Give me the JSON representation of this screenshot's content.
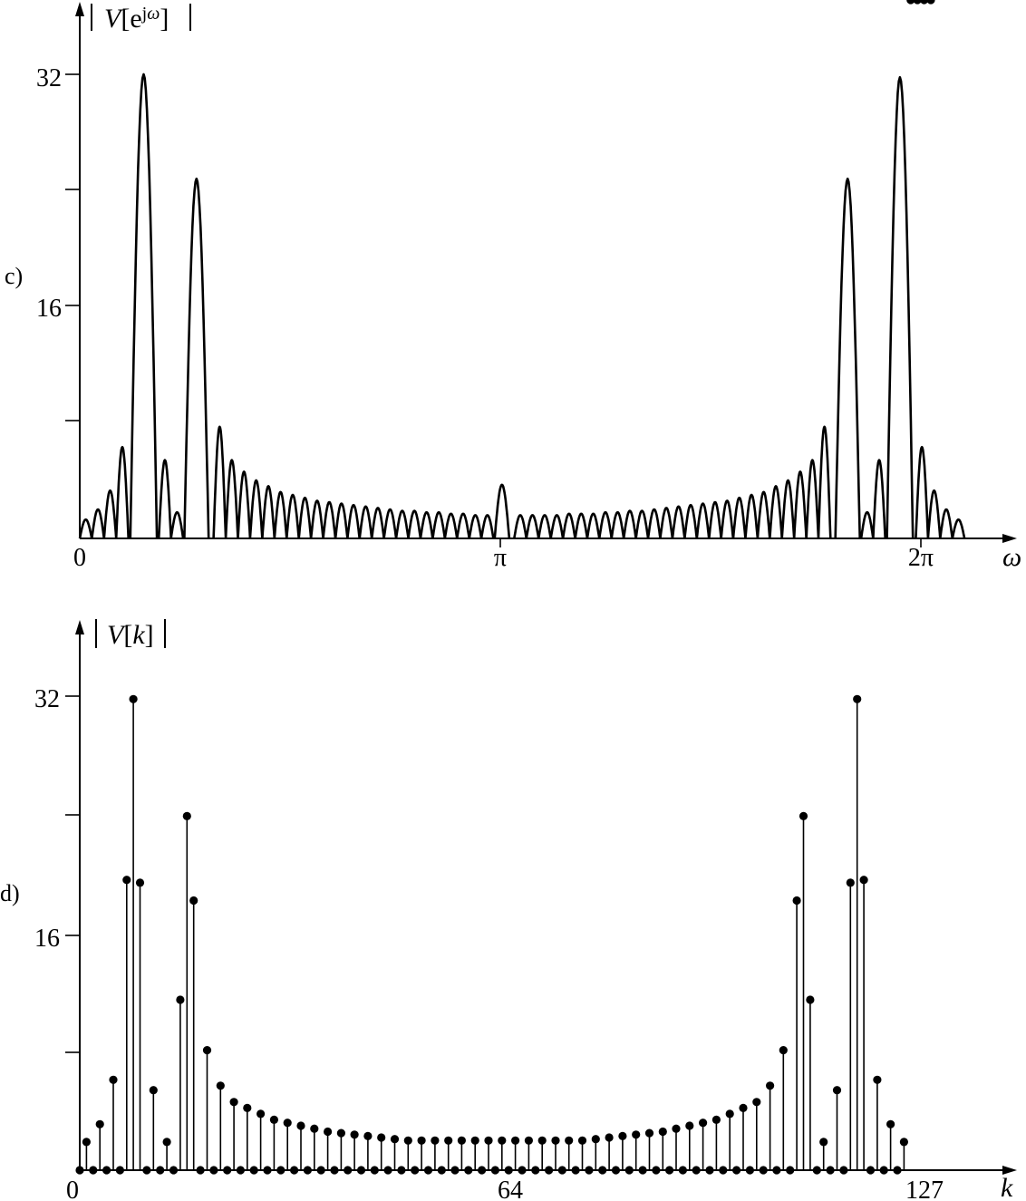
{
  "chart_data": [
    {
      "type": "line",
      "panel_label": "c)",
      "ylabel_parts": [
        "V",
        "[e",
        "j",
        "ω",
        "]"
      ],
      "xlabel": "ω",
      "x_ticks": [
        {
          "value": 0,
          "label": "0"
        },
        {
          "value": 3.14159,
          "label": "π"
        },
        {
          "value": 6.28318,
          "label": "2π"
        }
      ],
      "y_ticks": [
        {
          "value": 8,
          "label": ""
        },
        {
          "value": 16,
          "label": "16"
        },
        {
          "value": 24,
          "label": ""
        },
        {
          "value": 32,
          "label": "32"
        }
      ],
      "xlim": [
        0,
        7.0
      ],
      "ylim": [
        0,
        36
      ],
      "series": [
        {
          "lobe_peaks": [
            [
              0.045,
              1.3
            ],
            [
              0.136,
              2.0
            ],
            [
              0.227,
              3.3
            ],
            [
              0.318,
              6.3
            ],
            [
              0.477,
              32.0
            ],
            [
              0.636,
              5.4
            ],
            [
              0.727,
              1.8
            ],
            [
              0.872,
              24.8
            ],
            [
              1.045,
              7.7
            ],
            [
              1.136,
              5.4
            ],
            [
              1.227,
              4.6
            ],
            [
              1.318,
              4.0
            ],
            [
              1.409,
              3.6
            ],
            [
              1.5,
              3.2
            ],
            [
              1.591,
              3.0
            ],
            [
              1.682,
              2.8
            ],
            [
              1.773,
              2.6
            ],
            [
              1.864,
              2.5
            ],
            [
              1.955,
              2.4
            ],
            [
              2.045,
              2.3
            ],
            [
              2.136,
              2.2
            ],
            [
              2.227,
              2.1
            ],
            [
              2.318,
              2.0
            ],
            [
              2.409,
              1.9
            ],
            [
              2.5,
              1.9
            ],
            [
              2.591,
              1.8
            ],
            [
              2.682,
              1.8
            ],
            [
              2.773,
              1.7
            ],
            [
              2.864,
              1.7
            ],
            [
              2.955,
              1.6
            ],
            [
              3.045,
              1.6
            ],
            [
              3.154,
              3.7
            ],
            [
              3.291,
              1.6
            ],
            [
              3.382,
              1.6
            ],
            [
              3.473,
              1.6
            ],
            [
              3.564,
              1.6
            ],
            [
              3.655,
              1.7
            ],
            [
              3.746,
              1.7
            ],
            [
              3.836,
              1.7
            ],
            [
              3.927,
              1.8
            ],
            [
              4.018,
              1.8
            ],
            [
              4.109,
              1.9
            ],
            [
              4.2,
              1.9
            ],
            [
              4.291,
              2.0
            ],
            [
              4.382,
              2.1
            ],
            [
              4.473,
              2.2
            ],
            [
              4.564,
              2.3
            ],
            [
              4.655,
              2.4
            ],
            [
              4.746,
              2.5
            ],
            [
              4.836,
              2.6
            ],
            [
              4.927,
              2.8
            ],
            [
              5.018,
              3.0
            ],
            [
              5.109,
              3.2
            ],
            [
              5.2,
              3.6
            ],
            [
              5.291,
              4.0
            ],
            [
              5.382,
              4.6
            ],
            [
              5.473,
              5.4
            ],
            [
              5.563,
              7.7
            ],
            [
              5.736,
              24.8
            ],
            [
              5.882,
              1.8
            ],
            [
              5.972,
              5.4
            ],
            [
              6.127,
              31.8
            ],
            [
              6.291,
              6.3
            ],
            [
              6.382,
              3.3
            ],
            [
              6.473,
              2.0
            ],
            [
              6.564,
              1.3
            ]
          ]
        }
      ]
    },
    {
      "type": "stem",
      "panel_label": "d)",
      "ylabel_parts": [
        "V",
        "[",
        "k",
        "]"
      ],
      "xlabel": "k",
      "x_ticks": [
        {
          "value": 0,
          "label": "0"
        },
        {
          "value": 64,
          "label": "64"
        },
        {
          "value": 127,
          "label": "127"
        }
      ],
      "y_ticks": [
        {
          "value": 8,
          "label": ""
        },
        {
          "value": 16,
          "label": "16"
        },
        {
          "value": 24,
          "label": ""
        },
        {
          "value": 32,
          "label": "32"
        }
      ],
      "xlim": [
        0,
        138
      ],
      "ylim": [
        0,
        36
      ],
      "series": [
        {
          "k": [
            0,
            1,
            2,
            3,
            4,
            5,
            6,
            7,
            8,
            9,
            10,
            11,
            12,
            13,
            14,
            15,
            16,
            17,
            18,
            19,
            20,
            21,
            22,
            23,
            24,
            25,
            26,
            27,
            28,
            29,
            30,
            31,
            32,
            33,
            34,
            35,
            36,
            37,
            38,
            39,
            40,
            41,
            42,
            43,
            44,
            45,
            46,
            47,
            48,
            49,
            50,
            51,
            52,
            53,
            54,
            55,
            56,
            57,
            58,
            59,
            60,
            61,
            62,
            63,
            64,
            65,
            66,
            67,
            68,
            69,
            70,
            71,
            72,
            73,
            74,
            75,
            76,
            77,
            78,
            79,
            80,
            81,
            82,
            83,
            84,
            85,
            86,
            87,
            88,
            89,
            90,
            91,
            92,
            93,
            94,
            95,
            96,
            97,
            98,
            99,
            100,
            101,
            102,
            103,
            104,
            105,
            106,
            107,
            108,
            109,
            110,
            111,
            112,
            113,
            114,
            115,
            116,
            117,
            118,
            119,
            120,
            121,
            122,
            123,
            124,
            125,
            126,
            127
          ],
          "values": [
            0,
            1.9,
            0,
            3.1,
            0,
            6.1,
            0,
            19.6,
            31.8,
            19.4,
            0,
            5.4,
            0,
            1.9,
            0,
            11.5,
            23.9,
            18.2,
            0,
            8.1,
            0,
            5.7,
            0,
            4.6,
            0,
            4.2,
            0,
            3.8,
            0,
            3.4,
            0,
            3.2,
            0,
            3.0,
            0,
            2.8,
            0,
            2.6,
            0,
            2.5,
            0,
            2.4,
            0,
            2.3,
            0,
            2.2,
            0,
            2.1,
            0,
            2.0,
            0,
            2.0,
            0,
            2.0,
            0,
            2.0,
            0,
            2.0,
            0,
            2.0,
            0,
            2.0,
            0,
            2.0,
            0,
            2.0,
            0,
            2.0,
            0,
            2.0,
            0,
            2.0,
            0,
            2.0,
            0,
            2.0,
            0,
            2.1,
            0,
            2.2,
            0,
            2.3,
            0,
            2.4,
            0,
            2.5,
            0,
            2.6,
            0,
            2.8,
            0,
            3.0,
            0,
            3.2,
            0,
            3.4,
            0,
            3.8,
            0,
            4.2,
            0,
            4.6,
            0,
            5.7,
            0,
            8.1,
            0,
            18.2,
            23.9,
            11.5,
            0,
            1.9,
            0,
            5.4,
            0,
            19.4,
            31.8,
            19.6,
            0,
            6.1,
            0,
            3.1,
            0,
            1.9
          ]
        }
      ]
    }
  ]
}
